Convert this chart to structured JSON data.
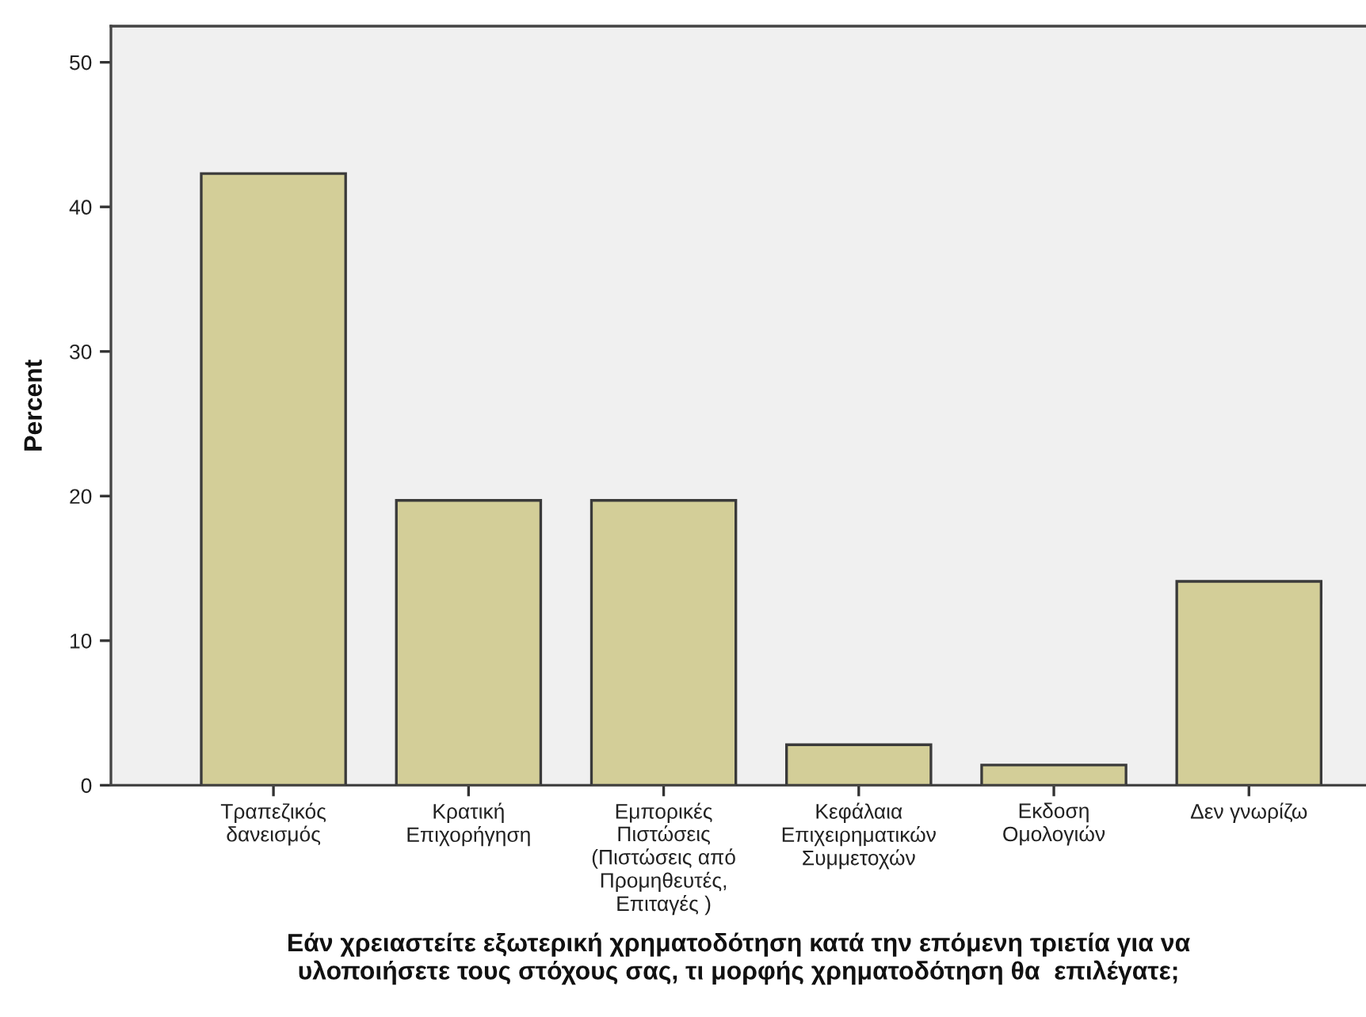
{
  "chart_data": {
    "type": "bar",
    "categories": [
      "Τραπεζικός\nδανεισμός",
      "Κρατική\nΕπιχορήγηση",
      "Εμπορικές\nΠιστώσεις\n(Πιστώσεις από\nΠρομηθευτές,\nΕπιταγές )",
      "Κεφάλαια\nΕπιχειρηματικών\nΣυμμετοχών",
      "Εκδοση\nΟμολογιών",
      "Δεν γνωρίζω"
    ],
    "values": [
      42.3,
      19.7,
      19.7,
      2.8,
      1.4,
      14.1
    ],
    "color": "#d3ce98",
    "ylim": [
      0,
      52.5
    ],
    "yticks": [
      0,
      10,
      20,
      30,
      40,
      50
    ],
    "xlabel": "Εάν χρειαστείτε εξωτερική χρηματοδότηση κατά την επόμενη τριετία για να\nυλοποιήσετε τους στόχους σας, τι μορφής χρηματοδότηση θα  επιλέγατε;",
    "ylabel": "Percent"
  }
}
